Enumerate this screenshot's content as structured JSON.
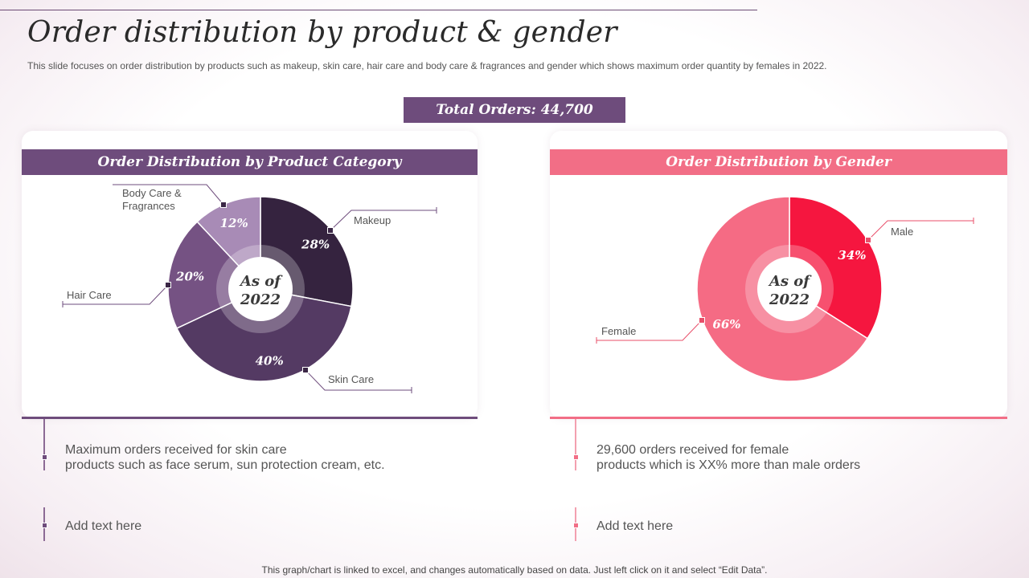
{
  "slide": {
    "title": "Order distribution by product & gender",
    "subtitle": "This slide focuses on order distribution by products such as makeup, skin care, hair care and body care & fragrances and gender which shows maximum order quantity by females in 2022.",
    "total_orders": "Total Orders: 44,700",
    "footnote": "This graph/chart is linked to excel,  and changes automatically based on data. Just left click on it and select “Edit Data”."
  },
  "left_panel": {
    "header": "Order Distribution by Product Category",
    "notes": [
      "Maximum orders received for skin care\nproducts such as face serum, sun protection cream, etc.",
      "Add text here"
    ]
  },
  "right_panel": {
    "header": "Order Distribution by Gender",
    "notes": [
      "29,600 orders received for female\nproducts which is XX% more than male orders",
      "Add text here"
    ]
  },
  "colors": {
    "purple_accent": "#6e4c7c",
    "pink_accent": "#f26e86"
  },
  "chart_data": [
    {
      "type": "pie",
      "title": "Order Distribution by Product Category",
      "center_label": [
        "As of",
        "2022"
      ],
      "categories": [
        "Makeup",
        "Skin Care",
        "Hair Care",
        "Body Care & Fragrances"
      ],
      "values": [
        28,
        40,
        20,
        12
      ],
      "value_labels": [
        "28%",
        "40%",
        "20%",
        "12%"
      ],
      "colors": [
        "#35233f",
        "#543a63",
        "#755283",
        "#a88bb6"
      ],
      "legend": "callouts"
    },
    {
      "type": "pie",
      "title": "Order Distribution by Gender",
      "center_label": [
        "As of",
        "2022"
      ],
      "categories": [
        "Male",
        "Female"
      ],
      "values": [
        34,
        66
      ],
      "value_labels": [
        "34%",
        "66%"
      ],
      "colors": [
        "#f5163f",
        "#f56b84"
      ],
      "legend": "callouts"
    }
  ]
}
